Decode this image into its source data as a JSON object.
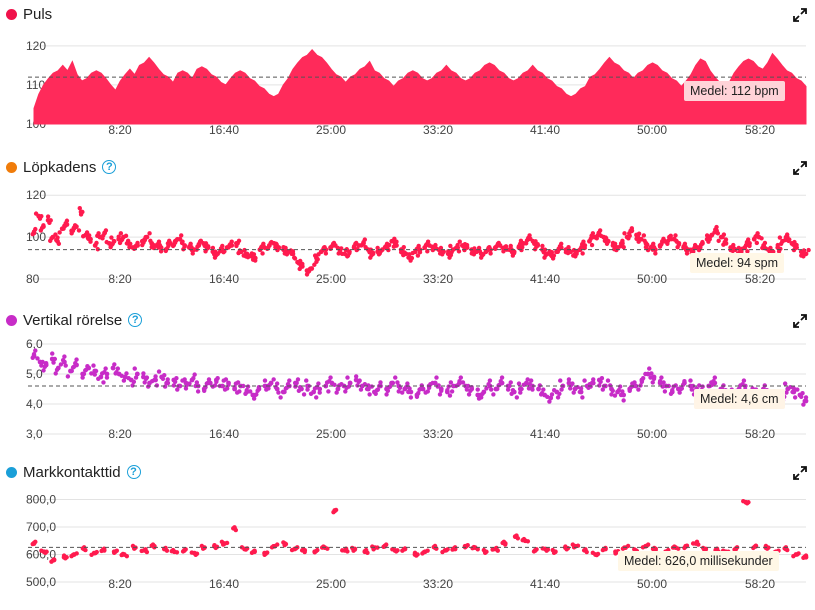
{
  "colors": {
    "grid": "#e3e3e3",
    "tick": "#444444",
    "avgline": "#555555",
    "pulse": "#ff2a5a",
    "cadence": "#ff1a4e",
    "vertical": "#c72cc7",
    "gct": "#ff1a4e"
  },
  "icons": {
    "help": "question-circle-icon",
    "expand": "expand-arrows-icon"
  },
  "panels": [
    {
      "title": "Puls",
      "dot_color": "#f0124a",
      "has_help": false,
      "avg_label": "Medel: 112 bpm"
    },
    {
      "title": "Löpkadens",
      "dot_color": "#f07c0a",
      "has_help": true,
      "avg_label": "Medel: 94 spm"
    },
    {
      "title": "Vertikal rörelse",
      "dot_color": "#c72cc7",
      "has_help": true,
      "avg_label": "Medel: 4,6 cm"
    },
    {
      "title": "Markkontakttid",
      "dot_color": "#1a9fd8",
      "has_help": true,
      "avg_label": "Medel: 626,0 millisekunder"
    }
  ],
  "help_glyph": "?",
  "chart_data": [
    {
      "type": "area",
      "series": [
        {
          "values": [
            104,
            108,
            110,
            112,
            113,
            114,
            115,
            114,
            116,
            113,
            111,
            112,
            113,
            114,
            113,
            112,
            110,
            109,
            111,
            113,
            114,
            113,
            115,
            116,
            117,
            116,
            114,
            113,
            112,
            111,
            113,
            114,
            113,
            112,
            114,
            115,
            114,
            113,
            112,
            111,
            110,
            112,
            113,
            114,
            113,
            112,
            111,
            110,
            109,
            108,
            107,
            108,
            110,
            112,
            114,
            116,
            117,
            118,
            119,
            118,
            117,
            116,
            114,
            113,
            112,
            111,
            112,
            113,
            114,
            115,
            116,
            114,
            113,
            112,
            111,
            110,
            111,
            112,
            113,
            114,
            113,
            112,
            111,
            112,
            113,
            114,
            115,
            114,
            113,
            112,
            111,
            112,
            113,
            114,
            115,
            116,
            115,
            114,
            113,
            112,
            111,
            112,
            113,
            114,
            115,
            114,
            113,
            112,
            111,
            110,
            109,
            108,
            107,
            108,
            109,
            110,
            112,
            113,
            114,
            116,
            117,
            116,
            115,
            114,
            113,
            112,
            113,
            114,
            115,
            116,
            115,
            114,
            113,
            112,
            111,
            110,
            111,
            113,
            115,
            117,
            116,
            114,
            112,
            111,
            110,
            111,
            113,
            115,
            116,
            117,
            116,
            115,
            114,
            116,
            118,
            117,
            115,
            114,
            113,
            112,
            111,
            110
          ]
        }
      ],
      "x_ticks": [
        "8:20",
        "16:40",
        "25:00",
        "33:20",
        "41:40",
        "50:00",
        "58:20"
      ],
      "y_ticks": [
        "120",
        "110",
        "100"
      ],
      "ylim": [
        100,
        122
      ],
      "average": 112
    },
    {
      "type": "scatter",
      "series": [
        {
          "values": [
            102,
            110,
            105,
            108,
            100,
            98,
            104,
            106,
            103,
            105,
            112,
            101,
            99,
            96,
            100,
            102,
            97,
            98,
            99,
            100,
            97,
            95,
            96,
            98,
            100,
            97,
            96,
            95,
            94,
            97,
            98,
            99,
            96,
            95,
            94,
            96,
            97,
            95,
            93,
            92,
            94,
            95,
            96,
            97,
            93,
            92,
            91,
            90,
            94,
            95,
            96,
            97,
            95,
            94,
            93,
            92,
            88,
            86,
            84,
            85,
            90,
            93,
            94,
            95,
            96,
            94,
            92,
            93,
            95,
            96,
            97,
            94,
            92,
            93,
            94,
            95,
            98,
            96,
            94,
            92,
            90,
            93,
            94,
            95,
            96,
            95,
            94,
            93,
            92,
            94,
            95,
            96,
            95,
            94,
            93,
            92,
            93,
            94,
            95,
            96,
            95,
            94,
            93,
            95,
            97,
            99,
            98,
            96,
            94,
            92,
            91,
            93,
            95,
            94,
            93,
            92,
            94,
            96,
            98,
            100,
            102,
            100,
            98,
            96,
            95,
            97,
            100,
            103,
            101,
            99,
            97,
            95,
            94,
            96,
            98,
            100,
            99,
            97,
            95,
            94,
            93,
            95,
            97,
            99,
            101,
            103,
            100,
            97,
            95,
            94,
            93,
            95,
            97,
            99,
            100,
            96,
            94,
            93,
            95,
            98,
            100,
            97,
            95,
            93,
            92
          ]
        }
      ],
      "x_ticks": [
        "8:20",
        "16:40",
        "25:00",
        "33:20",
        "41:40",
        "50:00",
        "58:20"
      ],
      "y_ticks": [
        "120",
        "100",
        "80"
      ],
      "ylim": [
        80,
        122
      ],
      "average": 94
    },
    {
      "type": "scatter",
      "series": [
        {
          "values": [
            5.6,
            5.4,
            5.3,
            5.5,
            5.2,
            5.4,
            5.1,
            5.3,
            5.0,
            5.2,
            5.1,
            4.9,
            5.0,
            5.2,
            5.0,
            4.9,
            4.8,
            5.0,
            4.9,
            4.7,
            4.8,
            4.9,
            4.7,
            4.8,
            4.6,
            4.7,
            4.8,
            4.6,
            4.5,
            4.7,
            4.8,
            4.6,
            4.7,
            4.5,
            4.6,
            4.4,
            4.3,
            4.5,
            4.6,
            4.7,
            4.5,
            4.4,
            4.6,
            4.7,
            4.5,
            4.6,
            4.4,
            4.5,
            4.6,
            4.7,
            4.5,
            4.6,
            4.7,
            4.8,
            4.6,
            4.5,
            4.4,
            4.6,
            4.5,
            4.7,
            4.6,
            4.5,
            4.4,
            4.3,
            4.5,
            4.6,
            4.7,
            4.5,
            4.4,
            4.6,
            4.7,
            4.6,
            4.5,
            4.3,
            4.4,
            4.6,
            4.5,
            4.7,
            4.6,
            4.4,
            4.5,
            4.7,
            4.6,
            4.5,
            4.3,
            4.2,
            4.4,
            4.6,
            4.7,
            4.5,
            4.4,
            4.6,
            4.7,
            4.8,
            4.6,
            4.5,
            4.4,
            4.3,
            4.5,
            4.6,
            4.8,
            5.0,
            4.9,
            4.7,
            4.6,
            4.4,
            4.5,
            4.7,
            4.6,
            4.5,
            4.4,
            4.6,
            4.7,
            4.5,
            4.4,
            4.3,
            4.5,
            4.6,
            4.4,
            4.3,
            4.5,
            4.4,
            4.2,
            4.3,
            4.5,
            4.4,
            4.3,
            4.1
          ]
        }
      ],
      "x_ticks": [
        "8:20",
        "16:40",
        "25:00",
        "33:20",
        "41:40",
        "50:00",
        "58:20"
      ],
      "y_ticks": [
        "6,0",
        "5,0",
        "4,0",
        "3,0"
      ],
      "ylim": [
        3.0,
        6.0
      ],
      "average": 4.6
    },
    {
      "type": "scatter",
      "series": [
        {
          "values": [
            640,
            610,
            580,
            590,
            600,
            620,
            605,
            615,
            610,
            600,
            625,
            615,
            630,
            620,
            610,
            615,
            605,
            625,
            630,
            640,
            695,
            620,
            610,
            605,
            630,
            640,
            620,
            615,
            610,
            625,
            760,
            615,
            620,
            610,
            625,
            630,
            615,
            620,
            600,
            610,
            625,
            615,
            620,
            630,
            625,
            610,
            620,
            640,
            665,
            650,
            615,
            620,
            610,
            625,
            630,
            615,
            600,
            620,
            610,
            625,
            615,
            630,
            620,
            610,
            625,
            630,
            640,
            620,
            615,
            610,
            620,
            790,
            630,
            625,
            610,
            620,
            600,
            590
          ]
        }
      ],
      "x_ticks": [
        "8:20",
        "16:40",
        "25:00",
        "33:20",
        "41:40",
        "50:00",
        "58:20"
      ],
      "y_ticks": [
        "800,0",
        "700,0",
        "600,0",
        "500,0"
      ],
      "ylim": [
        500,
        820
      ],
      "average": 626
    }
  ]
}
